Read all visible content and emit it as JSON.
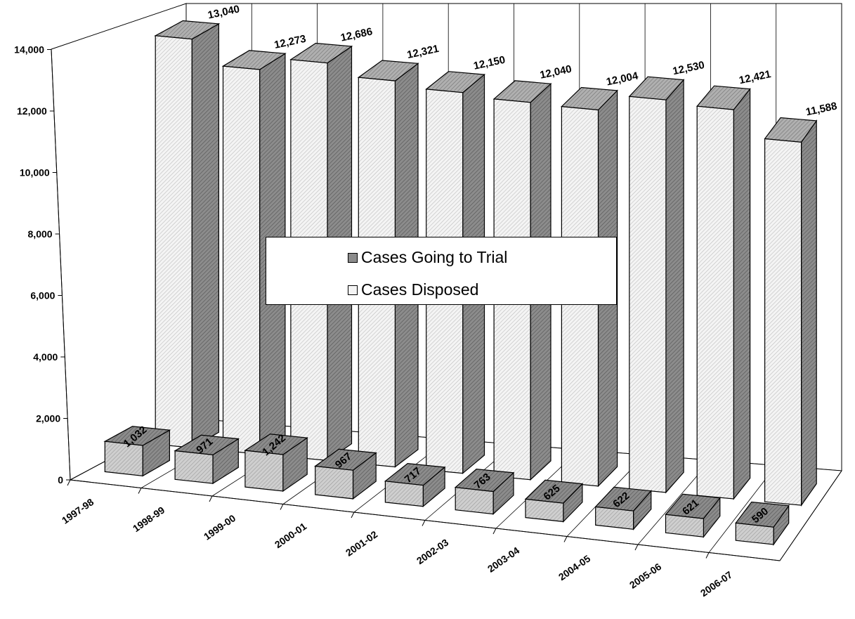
{
  "chart_data": {
    "type": "bar",
    "three_d": true,
    "categories": [
      "1997-98",
      "1998-99",
      "1999-00",
      "2000-01",
      "2001-02",
      "2002-03",
      "2003-04",
      "2004-05",
      "2005-06",
      "2006-07"
    ],
    "series": [
      {
        "name": "Cases Going to Trial",
        "values": [
          1032,
          971,
          1242,
          967,
          717,
          763,
          625,
          622,
          621,
          590
        ],
        "labels": [
          "1,032",
          "971",
          "1,242",
          "967",
          "717",
          "763",
          "625",
          "622",
          "621",
          "590"
        ],
        "color": "#8c8c8c",
        "pattern": "hatched"
      },
      {
        "name": "Cases Disposed",
        "values": [
          13040,
          12273,
          12686,
          12321,
          12150,
          12040,
          12004,
          12530,
          12421,
          11588
        ],
        "labels": [
          "13,040",
          "12,273",
          "12,686",
          "12,321",
          "12,150",
          "12,040",
          "12,004",
          "12,530",
          "12,421",
          "11,588"
        ],
        "color": "#ffffff",
        "pattern": "hatched"
      }
    ],
    "y_ticks": [
      "0",
      "2,000",
      "4,000",
      "6,000",
      "8,000",
      "10,000",
      "12,000",
      "14,000"
    ],
    "ylim": [
      0,
      14000
    ],
    "grid": true,
    "legend_placement": "center",
    "title": "",
    "xlabel": "",
    "ylabel": ""
  }
}
